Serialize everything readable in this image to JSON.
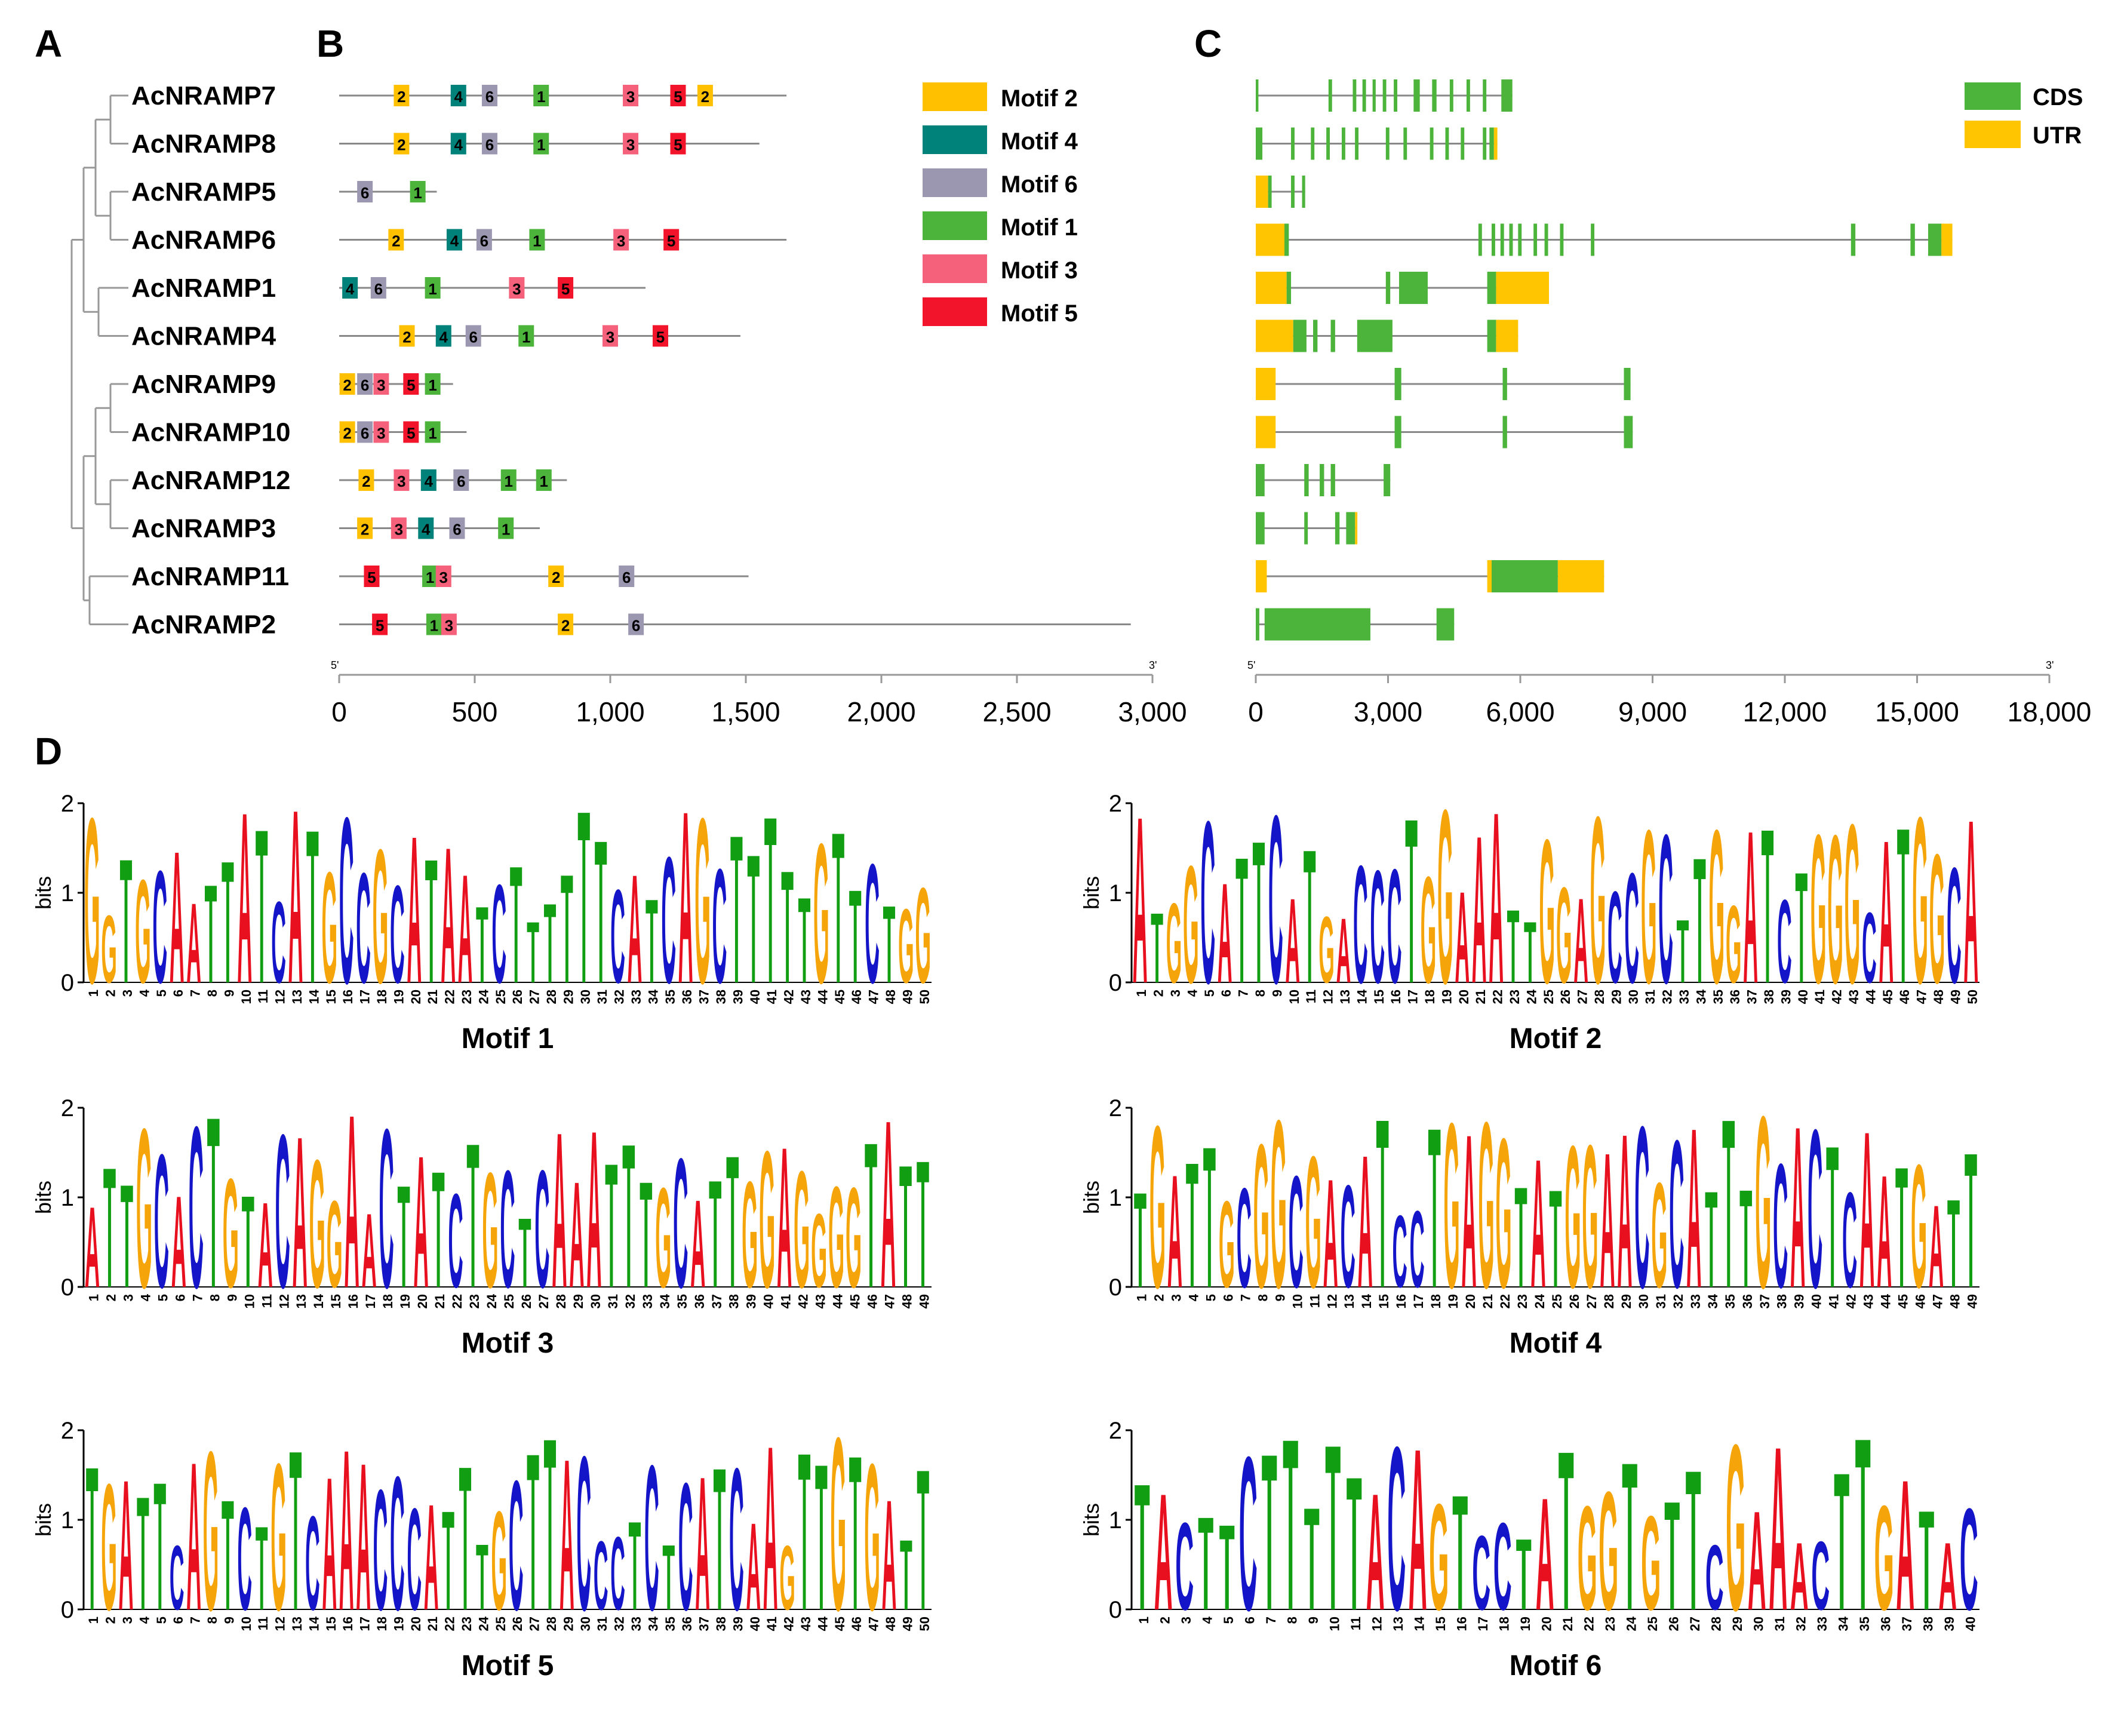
{
  "panels": {
    "A": "A",
    "B": "B",
    "C": "C",
    "D": "D"
  },
  "genes": [
    {
      "name": "AcNRAMP7",
      "length": 1650,
      "motifs": [
        {
          "id": "2",
          "pos": 230
        },
        {
          "id": "4",
          "pos": 440
        },
        {
          "id": "6",
          "pos": 555
        },
        {
          "id": "1",
          "pos": 745
        },
        {
          "id": "3",
          "pos": 1075
        },
        {
          "id": "5",
          "pos": 1250
        },
        {
          "id": "2",
          "pos": 1350
        }
      ],
      "exons": [
        [
          0,
          60
        ],
        [
          1650,
          1730
        ],
        [
          2200,
          2280
        ],
        [
          2420,
          2500
        ],
        [
          2650,
          2720
        ],
        [
          2880,
          2960
        ],
        [
          3130,
          3210
        ],
        [
          3580,
          3720
        ],
        [
          4000,
          4100
        ],
        [
          4400,
          4480
        ],
        [
          4780,
          4860
        ],
        [
          5150,
          5230
        ],
        [
          5570,
          5820
        ]
      ],
      "utrs": []
    },
    {
      "name": "AcNRAMP8",
      "length": 1550,
      "motifs": [
        {
          "id": "2",
          "pos": 230
        },
        {
          "id": "4",
          "pos": 440
        },
        {
          "id": "6",
          "pos": 555
        },
        {
          "id": "1",
          "pos": 745
        },
        {
          "id": "3",
          "pos": 1075
        },
        {
          "id": "5",
          "pos": 1250
        }
      ],
      "exons": [
        [
          0,
          150
        ],
        [
          800,
          880
        ],
        [
          1250,
          1330
        ],
        [
          1600,
          1680
        ],
        [
          1950,
          2030
        ],
        [
          2250,
          2330
        ],
        [
          2950,
          3030
        ],
        [
          3350,
          3430
        ],
        [
          3950,
          4030
        ],
        [
          4300,
          4380
        ],
        [
          4650,
          4730
        ],
        [
          5150,
          5230
        ],
        [
          5300,
          5400
        ]
      ],
      "utrs": [
        [
          5400,
          5480
        ]
      ]
    },
    {
      "name": "AcNRAMP5",
      "length": 360,
      "motifs": [
        {
          "id": "6",
          "pos": 95
        },
        {
          "id": "1",
          "pos": 290
        }
      ],
      "exons": [
        [
          280,
          360
        ],
        [
          800,
          880
        ],
        [
          1050,
          1120
        ]
      ],
      "utrs": [
        [
          0,
          280
        ]
      ]
    },
    {
      "name": "AcNRAMP6",
      "length": 1650,
      "motifs": [
        {
          "id": "2",
          "pos": 210
        },
        {
          "id": "4",
          "pos": 425
        },
        {
          "id": "6",
          "pos": 535
        },
        {
          "id": "1",
          "pos": 730
        },
        {
          "id": "3",
          "pos": 1040
        },
        {
          "id": "5",
          "pos": 1225
        }
      ],
      "exons": [
        [
          650,
          750
        ],
        [
          5050,
          5130
        ],
        [
          5350,
          5430
        ],
        [
          5550,
          5630
        ],
        [
          5750,
          5830
        ],
        [
          5950,
          6030
        ],
        [
          6300,
          6380
        ],
        [
          6550,
          6630
        ],
        [
          6900,
          6980
        ],
        [
          7600,
          7680
        ],
        [
          13500,
          13600
        ],
        [
          14850,
          14950
        ],
        [
          15250,
          15550
        ]
      ],
      "utrs": [
        [
          0,
          650
        ],
        [
          15550,
          15800
        ]
      ]
    },
    {
      "name": "AcNRAMP1",
      "length": 1130,
      "motifs": [
        {
          "id": "4",
          "pos": 40
        },
        {
          "id": "6",
          "pos": 145
        },
        {
          "id": "1",
          "pos": 345
        },
        {
          "id": "3",
          "pos": 655
        },
        {
          "id": "5",
          "pos": 835
        }
      ],
      "exons": [
        [
          700,
          800
        ],
        [
          2950,
          3050
        ],
        [
          3250,
          3900
        ],
        [
          5250,
          5450
        ]
      ],
      "utrs": [
        [
          0,
          700
        ],
        [
          5450,
          6650
        ]
      ]
    },
    {
      "name": "AcNRAMP4",
      "length": 1480,
      "motifs": [
        {
          "id": "2",
          "pos": 250
        },
        {
          "id": "4",
          "pos": 385
        },
        {
          "id": "6",
          "pos": 495
        },
        {
          "id": "1",
          "pos": 690
        },
        {
          "id": "3",
          "pos": 1000
        },
        {
          "id": "5",
          "pos": 1185
        }
      ],
      "exons": [
        [
          850,
          1150
        ],
        [
          1300,
          1400
        ],
        [
          1700,
          1800
        ],
        [
          2300,
          3100
        ],
        [
          5250,
          5450
        ]
      ],
      "utrs": [
        [
          0,
          850
        ],
        [
          5450,
          5950
        ]
      ]
    },
    {
      "name": "AcNRAMP9",
      "length": 420,
      "motifs": [
        {
          "id": "2",
          "pos": 30
        },
        {
          "id": "6",
          "pos": 95
        },
        {
          "id": "3",
          "pos": 155
        },
        {
          "id": "5",
          "pos": 265
        },
        {
          "id": "1",
          "pos": 345
        }
      ],
      "exons": [
        [
          3150,
          3300
        ],
        [
          5600,
          5700
        ],
        [
          8350,
          8500
        ]
      ],
      "utrs": [
        [
          0,
          450
        ]
      ]
    },
    {
      "name": "AcNRAMP10",
      "length": 470,
      "motifs": [
        {
          "id": "2",
          "pos": 30
        },
        {
          "id": "6",
          "pos": 95
        },
        {
          "id": "3",
          "pos": 155
        },
        {
          "id": "5",
          "pos": 265
        },
        {
          "id": "1",
          "pos": 345
        }
      ],
      "exons": [
        [
          3150,
          3300
        ],
        [
          5600,
          5700
        ],
        [
          8350,
          8550
        ]
      ],
      "utrs": [
        [
          0,
          450
        ]
      ]
    },
    {
      "name": "AcNRAMP12",
      "length": 840,
      "motifs": [
        {
          "id": "2",
          "pos": 100
        },
        {
          "id": "3",
          "pos": 230
        },
        {
          "id": "4",
          "pos": 330
        },
        {
          "id": "6",
          "pos": 450
        },
        {
          "id": "1",
          "pos": 625
        },
        {
          "id": "1",
          "pos": 755
        }
      ],
      "exons": [
        [
          0,
          200
        ],
        [
          1100,
          1200
        ],
        [
          1450,
          1550
        ],
        [
          1700,
          1800
        ],
        [
          2900,
          3050
        ]
      ],
      "utrs": []
    },
    {
      "name": "AcNRAMP3",
      "length": 740,
      "motifs": [
        {
          "id": "2",
          "pos": 95
        },
        {
          "id": "3",
          "pos": 220
        },
        {
          "id": "4",
          "pos": 320
        },
        {
          "id": "6",
          "pos": 435
        },
        {
          "id": "1",
          "pos": 615
        }
      ],
      "exons": [
        [
          0,
          200
        ],
        [
          1100,
          1180
        ],
        [
          1800,
          1900
        ],
        [
          2050,
          2250
        ]
      ],
      "utrs": [
        [
          2250,
          2300
        ]
      ]
    },
    {
      "name": "AcNRAMP11",
      "length": 1510,
      "motifs": [
        {
          "id": "5",
          "pos": 120
        },
        {
          "id": "1",
          "pos": 335
        },
        {
          "id": "3",
          "pos": 385
        },
        {
          "id": "2",
          "pos": 800
        },
        {
          "id": "6",
          "pos": 1060
        }
      ],
      "exons": [
        [
          5350,
          6850
        ]
      ],
      "utrs": [
        [
          0,
          250
        ],
        [
          5250,
          5350
        ],
        [
          6850,
          7900
        ]
      ]
    },
    {
      "name": "AcNRAMP2",
      "length": 2920,
      "motifs": [
        {
          "id": "5",
          "pos": 150
        },
        {
          "id": "1",
          "pos": 350
        },
        {
          "id": "3",
          "pos": 405
        },
        {
          "id": "2",
          "pos": 835
        },
        {
          "id": "6",
          "pos": 1095
        }
      ],
      "exons": [
        [
          0,
          80
        ],
        [
          200,
          2600
        ],
        [
          4100,
          4500
        ]
      ],
      "utrs": []
    }
  ],
  "motif_legend": [
    {
      "id": "2",
      "label": "Motif 2",
      "color": "#FFC000"
    },
    {
      "id": "4",
      "label": "Motif 4",
      "color": "#00827A"
    },
    {
      "id": "6",
      "label": "Motif 6",
      "color": "#9B97B0"
    },
    {
      "id": "1",
      "label": "Motif 1",
      "color": "#4CB43A"
    },
    {
      "id": "3",
      "label": "Motif 3",
      "color": "#F5607A"
    },
    {
      "id": "5",
      "label": "Motif 5",
      "color": "#F2142B"
    }
  ],
  "structure_legend": [
    {
      "label": "CDS",
      "color": "#4CB43A"
    },
    {
      "label": "UTR",
      "color": "#FFC500"
    }
  ],
  "axis_b": {
    "min": 0,
    "max": 3000,
    "ticks": [
      0,
      500,
      1000,
      1500,
      2000,
      2500,
      3000
    ],
    "tick_labels": [
      "0",
      "500",
      "1,000",
      "1,500",
      "2,000",
      "2,500",
      "3,000"
    ],
    "five_prime": "5'",
    "three_prime": "3'"
  },
  "axis_c": {
    "min": 0,
    "max": 18000,
    "ticks": [
      0,
      3000,
      6000,
      9000,
      12000,
      15000,
      18000
    ],
    "tick_labels": [
      "0",
      "3,000",
      "6,000",
      "9,000",
      "12,000",
      "15,000",
      "18,000"
    ],
    "five_prime": "5'",
    "three_prime": "3'"
  },
  "logos": [
    {
      "title": "Motif 1",
      "length": 50,
      "ymax": 2,
      "ylabel": "bits",
      "consensus": "GGTGCAATTATCATGCCGCATAATCTTTTTTCATCAGCTTTTTGTTCT"
    },
    {
      "title": "Motif 2",
      "length": 50,
      "ymax": 2,
      "ylabel": "bits",
      "consensus": "ATGGCATTCATGACCCTGGAAATTGGAGCCGCTTGGATCTGGGC"
    },
    {
      "title": "Motif 3",
      "length": 49,
      "ymax": 2,
      "ylabel": "bits",
      "consensus": "ATTGCACTGTACAGGAACTATCTGCTCAAATTTGCATTGGAGGGGT"
    },
    {
      "title": "Motif 4",
      "length": 49,
      "ymax": 2,
      "ylabel": "bits",
      "consensus": "TGATTGCGGCGACATCCTGAGGTATGGAACGCATTTGCACTCAA"
    },
    {
      "title": "Motif 5",
      "length": 50,
      "ymax": 2,
      "ylabel": "bits",
      "consensus": "TGATTCAGTCTGTCAAACCCATTTGCTTACCCTCTCATCAAGTTG"
    },
    {
      "title": "Motif 6",
      "length": 40,
      "ymax": 2,
      "ylabel": "bits",
      "consensus": "TACTTCTTTTTACAGTCCTATGGTGTTCGAAACTTGA"
    }
  ]
}
